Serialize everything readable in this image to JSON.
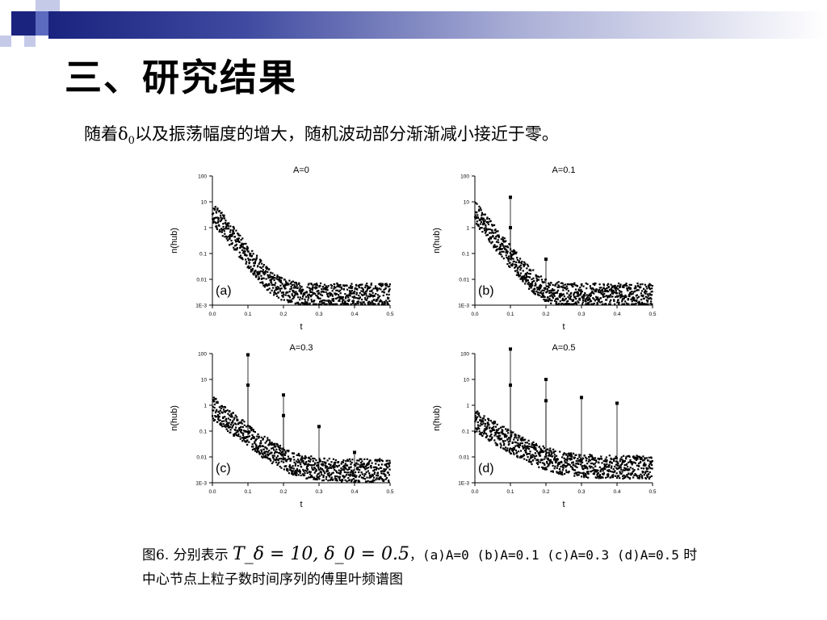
{
  "slide": {
    "title": "三、研究结果",
    "subtitle_pre": "随着δ",
    "subtitle_sub": "0",
    "subtitle_post": "以及振荡幅度的增大，随机波动部分渐渐减小接近于零。",
    "colors": {
      "accent_dark": "#1a237e",
      "accent_mid": "#5c6bc0",
      "accent_light": "#c5cae9"
    }
  },
  "caption": {
    "prefix": "图6. 分别表示",
    "formula": "T_δ = 10, δ_0 = 0.5",
    "values": "，(a)A=0 (b)A=0.1 (c)A=0.3 (d)A=0.5",
    "line1_end": "时",
    "line2": "中心节点上粒子数时间序列的傅里叶频谱图"
  },
  "chart_data": [
    {
      "type": "scatter",
      "id": "a",
      "title": "A=0",
      "panel_label": "(a)",
      "xlabel": "t",
      "ylabel": "n(hub)",
      "xlim": [
        0,
        0.5
      ],
      "ylim_log10": [
        -3,
        2
      ],
      "yscale": "log",
      "x_ticks": [
        "0.0",
        "0.1",
        "0.2",
        "0.3",
        "0.4",
        "0.5"
      ],
      "y_ticks": [
        "1E-3",
        "0.01",
        "0.1",
        "1",
        "10",
        "100"
      ],
      "decay": {
        "y0": 4,
        "tau": 0.025,
        "floor": 0.0025
      },
      "peaks": []
    },
    {
      "type": "scatter",
      "id": "b",
      "title": "A=0.1",
      "panel_label": "(b)",
      "xlabel": "t",
      "ylabel": "n(hub)",
      "xlim": [
        0,
        0.5
      ],
      "ylim_log10": [
        -3,
        2
      ],
      "yscale": "log",
      "x_ticks": [
        "0.0",
        "0.1",
        "0.2",
        "0.3",
        "0.4",
        "0.5"
      ],
      "y_ticks": [
        "1E-3",
        "0.01",
        "0.1",
        "1",
        "10",
        "100"
      ],
      "decay": {
        "y0": 4,
        "tau": 0.025,
        "floor": 0.0025
      },
      "peaks": [
        {
          "x": 0.1,
          "y": 15
        },
        {
          "x": 0.1,
          "y": 1.0
        },
        {
          "x": 0.2,
          "y": 0.06
        }
      ]
    },
    {
      "type": "scatter",
      "id": "c",
      "title": "A=0.3",
      "panel_label": "(c)",
      "xlabel": "t",
      "ylabel": "n(hub)",
      "xlim": [
        0,
        0.5
      ],
      "ylim_log10": [
        -3,
        2
      ],
      "yscale": "log",
      "x_ticks": [
        "0.0",
        "0.1",
        "0.2",
        "0.3",
        "0.4",
        "0.5"
      ],
      "y_ticks": [
        "1E-3",
        "0.01",
        "0.1",
        "1",
        "10",
        "100"
      ],
      "decay": {
        "y0": 0.8,
        "tau": 0.04,
        "floor": 0.003
      },
      "peaks": [
        {
          "x": 0.1,
          "y": 90
        },
        {
          "x": 0.1,
          "y": 6
        },
        {
          "x": 0.2,
          "y": 2.5
        },
        {
          "x": 0.2,
          "y": 0.4
        },
        {
          "x": 0.3,
          "y": 0.15
        },
        {
          "x": 0.4,
          "y": 0.015
        }
      ]
    },
    {
      "type": "scatter",
      "id": "d",
      "title": "A=0.5",
      "panel_label": "(d)",
      "xlabel": "t",
      "ylabel": "n(hub)",
      "xlim": [
        0,
        0.5
      ],
      "ylim_log10": [
        -3,
        2
      ],
      "yscale": "log",
      "x_ticks": [
        "0.0",
        "0.1",
        "0.2",
        "0.3",
        "0.4",
        "0.5"
      ],
      "y_ticks": [
        "1E-3",
        "0.01",
        "0.1",
        "1",
        "10",
        "100"
      ],
      "decay": {
        "y0": 0.25,
        "tau": 0.05,
        "floor": 0.004
      },
      "peaks": [
        {
          "x": 0.1,
          "y": 150
        },
        {
          "x": 0.1,
          "y": 6
        },
        {
          "x": 0.2,
          "y": 10
        },
        {
          "x": 0.2,
          "y": 1.5
        },
        {
          "x": 0.3,
          "y": 2
        },
        {
          "x": 0.4,
          "y": 1.2
        }
      ]
    }
  ]
}
